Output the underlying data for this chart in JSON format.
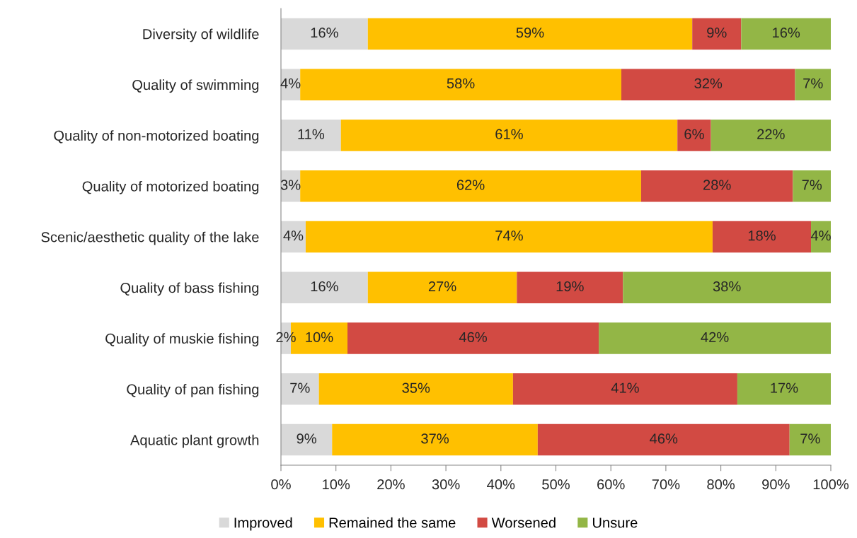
{
  "chart_data": {
    "type": "bar",
    "orientation": "horizontal",
    "stacked": true,
    "categories": [
      "Diversity of wildlife",
      "Quality of swimming",
      "Quality of non-motorized boating",
      "Quality of motorized boating",
      "Scenic/aesthetic quality of the lake",
      "Quality of bass fishing",
      "Quality of muskie fishing",
      "Quality of pan fishing",
      "Aquatic plant growth"
    ],
    "series": [
      {
        "name": "Improved",
        "color": "#d9d9d9",
        "values": [
          15.8,
          3.5,
          10.9,
          3.5,
          4.5,
          15.8,
          1.8,
          6.9,
          9.3
        ],
        "value_labels": [
          "16%",
          "4%",
          "11%",
          "3%",
          "4%",
          "16%",
          "2%",
          "7%",
          "9%"
        ]
      },
      {
        "name": "Remained the same",
        "color": "#ffc000",
        "values": [
          59.0,
          58.4,
          61.2,
          62.0,
          74.0,
          27.1,
          10.3,
          35.3,
          37.4
        ],
        "value_labels": [
          "59%",
          "58%",
          "61%",
          "62%",
          "74%",
          "27%",
          "10%",
          "35%",
          "37%"
        ]
      },
      {
        "name": "Worsened",
        "color": "#d24a43",
        "values": [
          8.9,
          31.6,
          6.1,
          27.6,
          17.9,
          19.3,
          45.7,
          40.8,
          45.8
        ],
        "value_labels": [
          "9%",
          "32%",
          "6%",
          "28%",
          "18%",
          "19%",
          "46%",
          "41%",
          "46%"
        ]
      },
      {
        "name": "Unsure",
        "color": "#93b646",
        "values": [
          16.3,
          6.5,
          21.8,
          6.9,
          3.6,
          37.8,
          42.2,
          17.0,
          7.5
        ],
        "value_labels": [
          "16%",
          "7%",
          "22%",
          "7%",
          "4%",
          "38%",
          "42%",
          "17%",
          "7%"
        ]
      }
    ],
    "xlim": [
      0,
      100
    ],
    "xticks": [
      {
        "value": 0,
        "label": "0%"
      },
      {
        "value": 10,
        "label": "10%"
      },
      {
        "value": 20,
        "label": "20%"
      },
      {
        "value": 30,
        "label": "30%"
      },
      {
        "value": 40,
        "label": "40%"
      },
      {
        "value": 50,
        "label": "50%"
      },
      {
        "value": 60,
        "label": "60%"
      },
      {
        "value": 70,
        "label": "70%"
      },
      {
        "value": 80,
        "label": "80%"
      },
      {
        "value": 90,
        "label": "90%"
      },
      {
        "value": 100,
        "label": "100%"
      }
    ],
    "grid": false,
    "legend": "bottom"
  }
}
